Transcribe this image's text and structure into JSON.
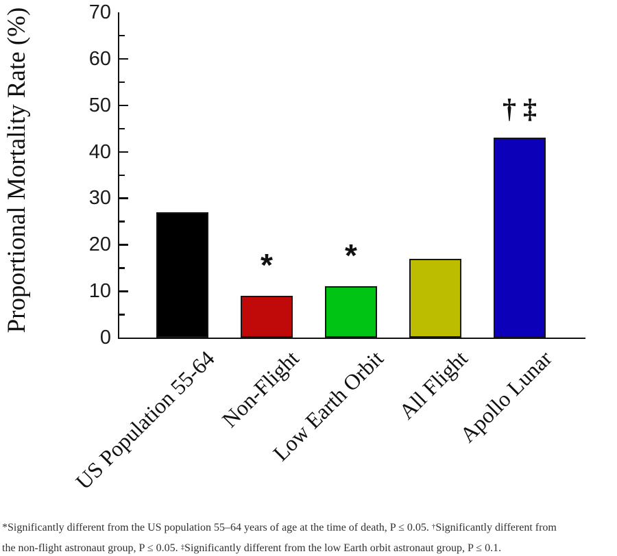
{
  "figure": {
    "background": "#ffffff",
    "ink_color": "#111111"
  },
  "chart_data": {
    "type": "bar",
    "title": "",
    "xlabel": "",
    "ylabel": "Proportional Mortality Rate (%)",
    "ylim": [
      0,
      70
    ],
    "ytick_interval_major": 10,
    "ytick_interval_minor": 5,
    "ytick_labels": [
      "0",
      "10",
      "20",
      "30",
      "40",
      "50",
      "60",
      "70"
    ],
    "grid": false,
    "legend": null,
    "categories": [
      "US Population 55-64",
      "Non-Flight",
      "Low Earth Orbit",
      "All Flight",
      "Apollo Lunar"
    ],
    "values": [
      27,
      9,
      11,
      17,
      43
    ],
    "bar_colors": [
      "#000000",
      "#c00a0a",
      "#00c414",
      "#bcbc00",
      "#0c00b8"
    ],
    "annotations": [
      {
        "bar_index": 1,
        "text": "*",
        "kind": "asterisk"
      },
      {
        "bar_index": 2,
        "text": "*",
        "kind": "asterisk"
      },
      {
        "bar_index": 4,
        "text": "† ‡",
        "kind": "daggers"
      }
    ]
  },
  "footnote": {
    "color": "#303030",
    "lines": [
      [
        {
          "text": "*Significantly different from the US population 55–64 years of age at the time of death, P ≤ 0.05. "
        },
        {
          "text": "†",
          "sup": true
        },
        {
          "text": "Significantly different from"
        }
      ],
      [
        {
          "text": "the non-flight astronaut group, P ≤ 0.05. "
        },
        {
          "text": "‡",
          "sup": true
        },
        {
          "text": "Significantly different from the low Earth orbit astronaut group, P ≤ 0.1."
        }
      ]
    ]
  }
}
